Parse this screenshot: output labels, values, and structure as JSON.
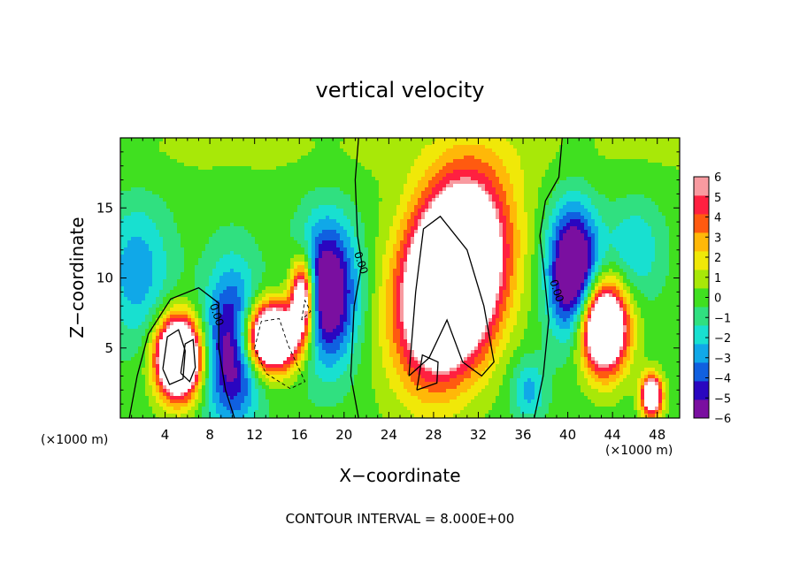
{
  "chart_data": {
    "type": "heatmap",
    "title": "vertical velocity",
    "xlabel": "X−coordinate",
    "ylabel": "Z−coordinate",
    "x_unit_label": "(×1000 m)",
    "footer": "CONTOUR INTERVAL = 8.000E+00",
    "xlim": [
      0,
      50
    ],
    "ylim": [
      0,
      20
    ],
    "x_ticks": [
      "4",
      "8",
      "12",
      "16",
      "20",
      "24",
      "28",
      "32",
      "36",
      "40",
      "44",
      "48"
    ],
    "x_tick_values": [
      4,
      8,
      12,
      16,
      20,
      24,
      28,
      32,
      36,
      40,
      44,
      48
    ],
    "y_ticks": [
      "5",
      "10",
      "15"
    ],
    "y_tick_values": [
      5,
      10,
      15
    ],
    "colorbar": {
      "min": -6,
      "max": 6,
      "tick_labels": [
        "6",
        "5",
        "4",
        "3",
        "2",
        "1",
        "0",
        "−1",
        "−2",
        "−3",
        "−4",
        "−5",
        "−6"
      ],
      "tick_values": [
        6,
        5,
        4,
        3,
        2,
        1,
        0,
        -1,
        -2,
        -3,
        -4,
        -5,
        -6
      ],
      "colors": [
        "#7a0fa0",
        "#2a06c0",
        "#1060e0",
        "#10a8e8",
        "#18e0d0",
        "#30e080",
        "#40e020",
        "#a8e808",
        "#f0e808",
        "#ffb808",
        "#ff5a10",
        "#ff2040",
        "#f89aa0"
      ],
      "saturated_positive": "#ffffff"
    },
    "contour_labels": [
      {
        "text": "0.00",
        "x": 8.3,
        "y": 7.3
      },
      {
        "text": "0.00",
        "x": 21.2,
        "y": 11.0
      },
      {
        "text": "0.00",
        "x": 38.7,
        "y": 9.0
      }
    ],
    "features": [
      {
        "kind": "updraft",
        "x": 5.5,
        "z": 4.5,
        "peak": 14
      },
      {
        "kind": "updraft",
        "x": 14,
        "z": 6,
        "peak": 10
      },
      {
        "kind": "updraft",
        "x": 30,
        "z": 10,
        "peak": 12
      },
      {
        "kind": "updraft",
        "x": 44,
        "z": 6,
        "peak": 9
      },
      {
        "kind": "updraft",
        "x": 47.5,
        "z": 1.5,
        "peak": 8
      },
      {
        "kind": "downdraft",
        "x": 10,
        "z": 5,
        "peak": -6
      },
      {
        "kind": "downdraft",
        "x": 19,
        "z": 8,
        "peak": -6
      },
      {
        "kind": "downdraft",
        "x": 41,
        "z": 10,
        "peak": -6
      },
      {
        "kind": "downdraft",
        "x": 2,
        "z": 11,
        "peak": -3
      }
    ]
  }
}
